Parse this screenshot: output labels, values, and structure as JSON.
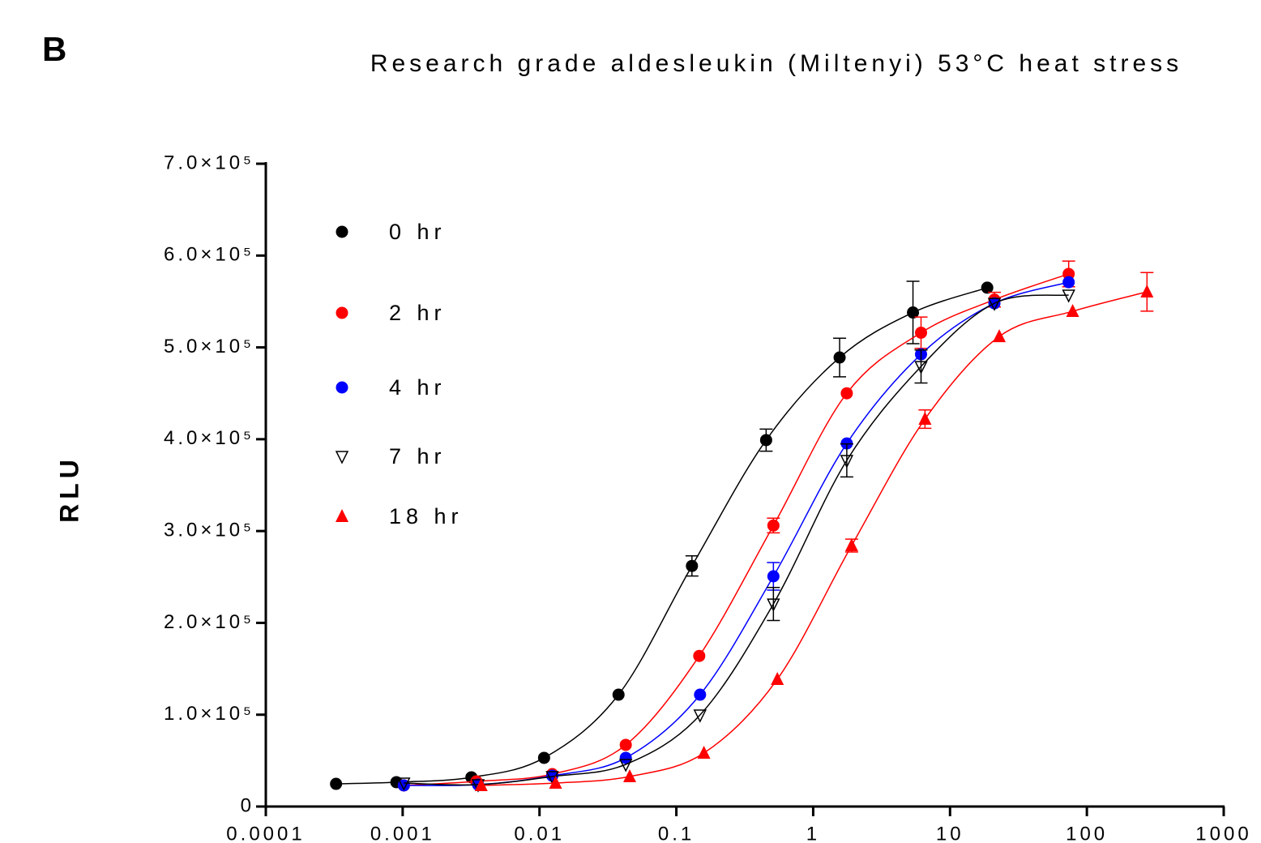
{
  "panel_label": "B",
  "chart_data": {
    "type": "scatter",
    "title": "Research grade aldesleukin (Miltenyi) 53°C heat stress",
    "y_label": "RLU",
    "xlog": true,
    "xlim": [
      0.0001,
      1000
    ],
    "xticks": [
      0.0001,
      0.001,
      0.01,
      0.1,
      1,
      10,
      100,
      1000
    ],
    "ylim": [
      0,
      700000
    ],
    "yticks": [
      0,
      {
        "value": 100000,
        "label": "1.0×10⁵"
      },
      {
        "value": 200000,
        "label": "2.0×10⁵"
      },
      {
        "value": 300000,
        "label": "3.0×10⁵"
      },
      {
        "value": 400000,
        "label": "4.0×10⁵"
      },
      {
        "value": 500000,
        "label": "5.0×10⁵"
      },
      {
        "value": 600000,
        "label": "6.0×10⁵"
      },
      {
        "value": 700000,
        "label": "7.0×10⁵"
      }
    ],
    "series": [
      {
        "name": "0 hr",
        "color": "#000000",
        "marker": "circle",
        "x": [
          0.000326,
          0.0009,
          0.00318,
          0.0108,
          0.0378,
          0.13,
          0.453,
          1.56,
          5.36,
          18.7
        ],
        "values": [
          24700,
          26500,
          31800,
          53000,
          121800,
          262000,
          399000,
          489000,
          538000,
          565000
        ],
        "errors": [
          0,
          0,
          0,
          0,
          0,
          11000,
          12000,
          21000,
          34000,
          0
        ]
      },
      {
        "name": "2 hr",
        "color": "#ff0000",
        "marker": "circle",
        "x": [
          0.00102,
          0.00346,
          0.0124,
          0.0427,
          0.147,
          0.512,
          1.76,
          6.14,
          21.1,
          73.6
        ],
        "values": [
          23000,
          27400,
          35300,
          67100,
          164000,
          306000,
          450000,
          516000,
          552000,
          580000
        ],
        "errors": [
          0,
          0,
          0,
          0,
          0,
          8000,
          0,
          17000,
          8000,
          14000
        ]
      },
      {
        "name": "4 hr",
        "color": "#0000ff",
        "marker": "circle",
        "x": [
          0.00102,
          0.00356,
          0.0124,
          0.0427,
          0.149,
          0.512,
          1.76,
          6.14,
          21.1,
          73.6
        ],
        "values": [
          23000,
          23800,
          33500,
          53000,
          121800,
          250700,
          395400,
          492500,
          548000,
          571000
        ],
        "errors": [
          0,
          0,
          0,
          0,
          0,
          15000,
          0,
          0,
          0,
          0
        ]
      },
      {
        "name": "7 hr",
        "color": "#000000",
        "marker": "triangle-down-open",
        "x": [
          0.00102,
          0.00356,
          0.0124,
          0.0427,
          0.149,
          0.512,
          1.76,
          6.14,
          21.1,
          73.6
        ],
        "values": [
          25600,
          23800,
          32700,
          45900,
          99700,
          220600,
          376900,
          479200,
          548000,
          557000
        ],
        "errors": [
          0,
          0,
          0,
          0,
          0,
          18000,
          18000,
          18000,
          0,
          0
        ]
      },
      {
        "name": "18 hr",
        "color": "#ff0000",
        "marker": "triangle",
        "x": [
          0.00375,
          0.0131,
          0.0456,
          0.159,
          0.547,
          1.91,
          6.56,
          22.9,
          78.7,
          275
        ],
        "values": [
          23000,
          25600,
          32700,
          58300,
          138600,
          284200,
          421900,
          511900,
          539300,
          560500
        ],
        "errors": [
          0,
          0,
          0,
          0,
          0,
          7000,
          10000,
          0,
          0,
          21000
        ]
      }
    ]
  }
}
